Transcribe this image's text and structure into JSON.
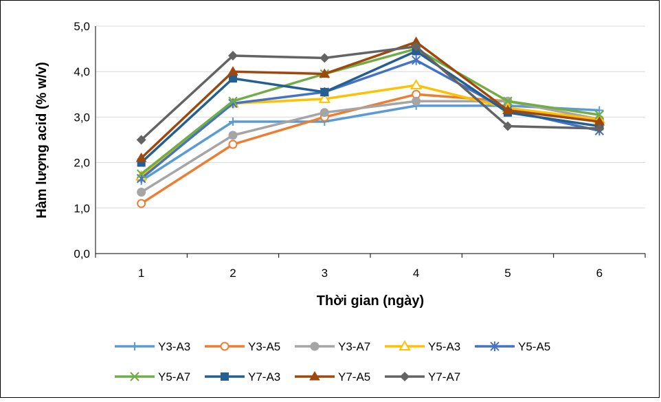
{
  "chart_data": {
    "type": "line",
    "title": "",
    "xlabel": "Thời gian (ngày)",
    "ylabel": "Hàm lượng acid (% w/v)",
    "x": [
      1,
      2,
      3,
      4,
      5,
      6
    ],
    "x_tick_labels": [
      "1",
      "2",
      "3",
      "4",
      "5",
      "6"
    ],
    "ylim": [
      0,
      5
    ],
    "y_tick_labels": [
      "0,0",
      "1,0",
      "2,0",
      "3,0",
      "4,0",
      "5,0"
    ],
    "grid": "horizontal",
    "legend_position": "bottom",
    "series": [
      {
        "name": "Y3-A3",
        "color": "#5b9bd5",
        "marker": "plus",
        "values": [
          1.6,
          2.9,
          2.9,
          3.25,
          3.25,
          3.15
        ]
      },
      {
        "name": "Y3-A5",
        "color": "#ed7d31",
        "marker": "circle-open",
        "values": [
          1.1,
          2.4,
          3.0,
          3.5,
          3.35,
          2.95
        ]
      },
      {
        "name": "Y3-A7",
        "color": "#a5a5a5",
        "marker": "circle",
        "values": [
          1.35,
          2.6,
          3.1,
          3.35,
          3.35,
          2.95
        ]
      },
      {
        "name": "Y5-A3",
        "color": "#ffc000",
        "marker": "triangle-open",
        "values": [
          1.7,
          3.3,
          3.4,
          3.7,
          3.2,
          2.95
        ]
      },
      {
        "name": "Y5-A5",
        "color": "#4472c4",
        "marker": "star",
        "values": [
          1.65,
          3.3,
          3.55,
          4.25,
          3.15,
          2.7
        ]
      },
      {
        "name": "Y5-A7",
        "color": "#70ad47",
        "marker": "x",
        "values": [
          1.75,
          3.35,
          3.95,
          4.5,
          3.35,
          3.05
        ]
      },
      {
        "name": "Y7-A3",
        "color": "#255e91",
        "marker": "square",
        "values": [
          2.0,
          3.85,
          3.55,
          4.45,
          3.1,
          2.8
        ]
      },
      {
        "name": "Y7-A5",
        "color": "#9e480e",
        "marker": "triangle",
        "values": [
          2.1,
          4.0,
          3.95,
          4.65,
          3.15,
          2.9
        ]
      },
      {
        "name": "Y7-A7",
        "color": "#636363",
        "marker": "diamond",
        "values": [
          2.5,
          4.35,
          4.3,
          4.55,
          2.8,
          2.75
        ]
      }
    ]
  }
}
